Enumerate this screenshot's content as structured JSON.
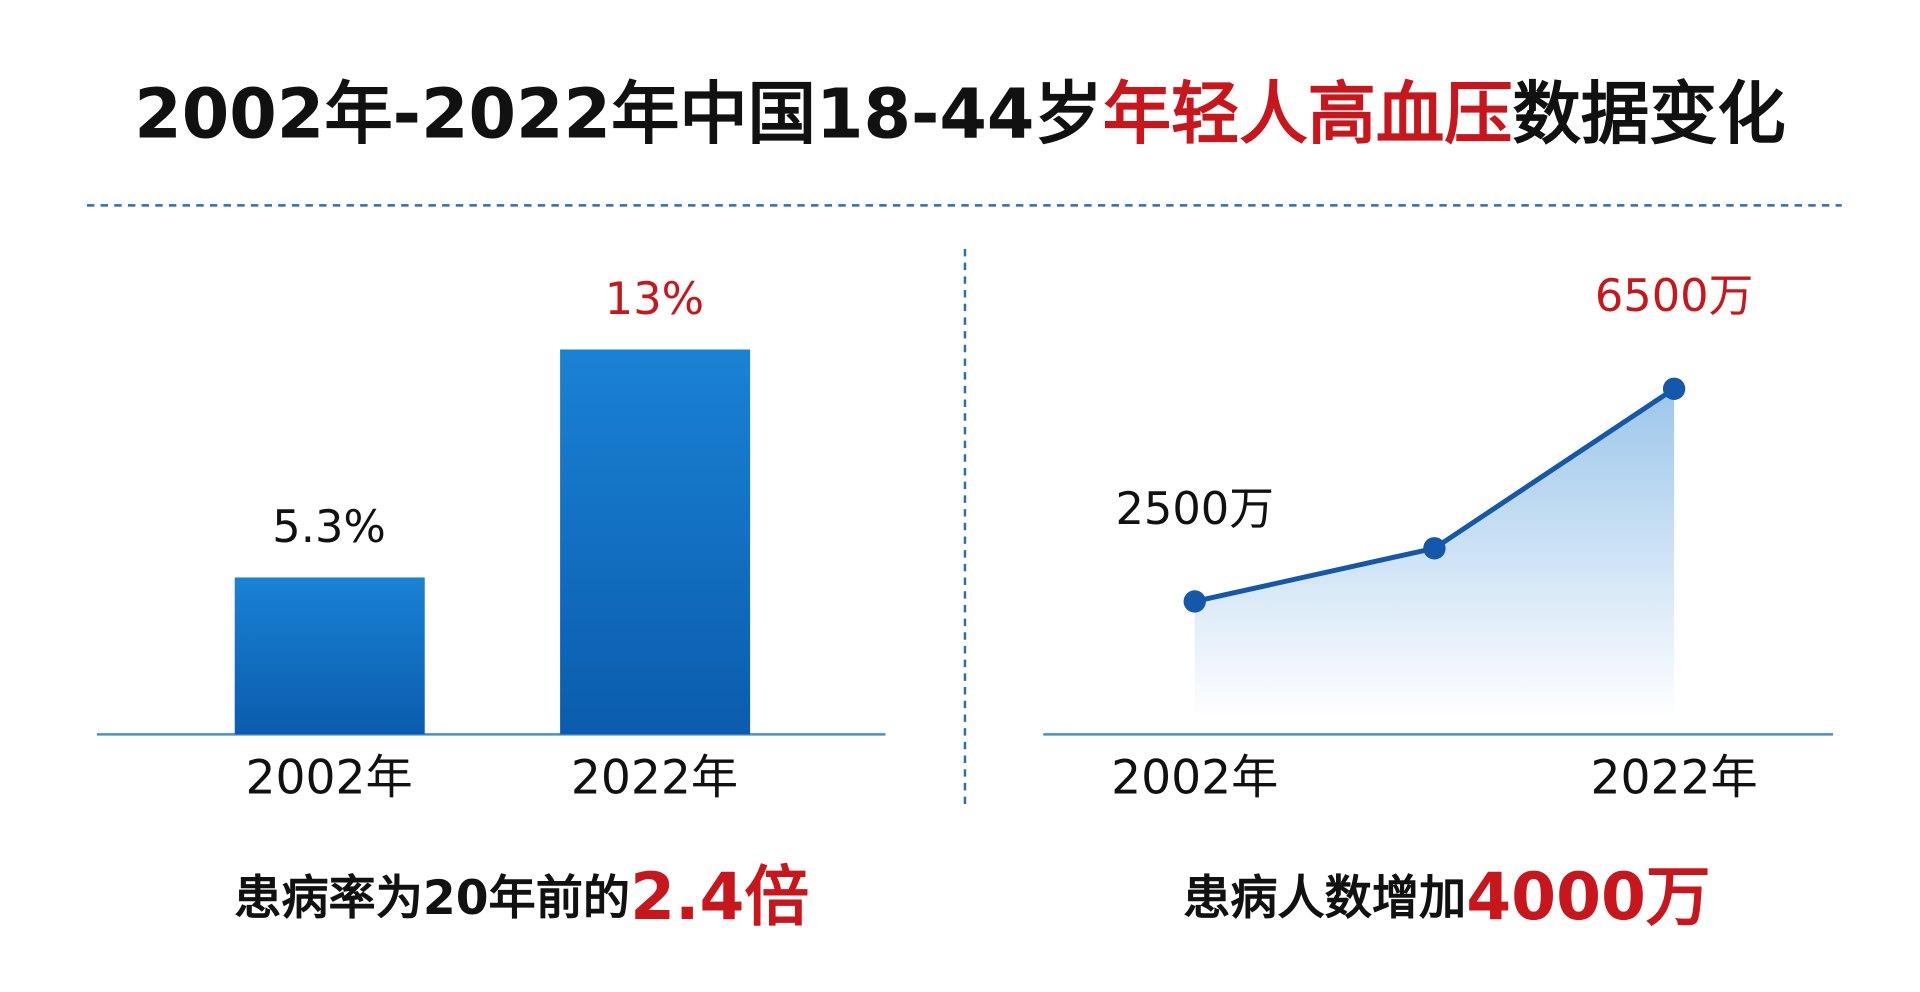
{
  "title_parts": [
    "2002年-2022年中国18-44岁",
    "年轻人高血压",
    "数据变化"
  ],
  "title_colors": [
    "#111111",
    "#c8161d",
    "#111111"
  ],
  "chart_data": [
    {
      "type": "bar",
      "categories": [
        "2002年",
        "2022年"
      ],
      "values": [
        5.3,
        13
      ],
      "value_labels": [
        "5.3%",
        "13%"
      ],
      "value_label_colors": [
        "#111111",
        "#c8161d"
      ],
      "color": "#0f6cc0",
      "ylim": [
        0,
        14
      ],
      "annotation": [
        "患病率为20年前的",
        "2.4倍"
      ]
    },
    {
      "type": "line",
      "categories": [
        "2002年",
        null,
        "2022年"
      ],
      "values": [
        2500,
        3500,
        6500
      ],
      "value_labels": [
        "2500万",
        null,
        "6500万"
      ],
      "value_label_colors": [
        "#111111",
        null,
        "#c8161d"
      ],
      "color": "#1557a8",
      "fill_area": true,
      "ylim": [
        0,
        7000
      ],
      "annotation": [
        "患病人数增加",
        "4000万"
      ]
    }
  ]
}
